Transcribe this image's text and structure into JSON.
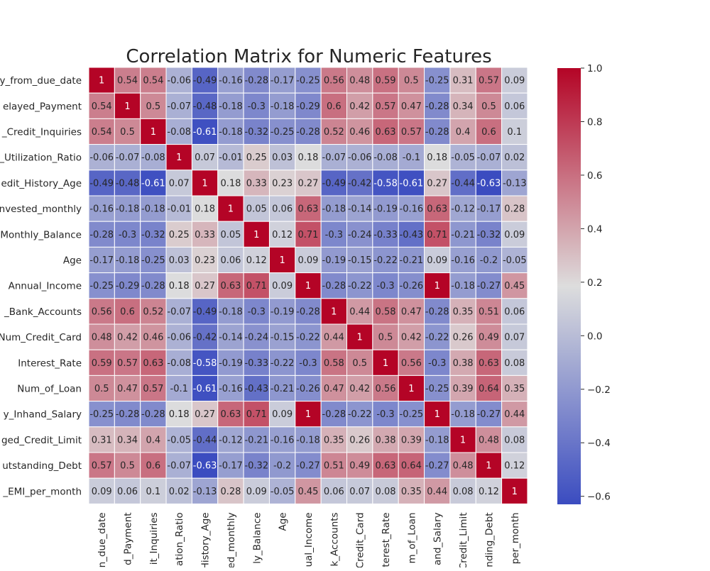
{
  "chart_data": {
    "type": "heatmap",
    "title": "Correlation Matrix for Numeric Features",
    "row_labels": [
      "y_from_due_date",
      "elayed_Payment",
      "_Credit_Inquiries",
      "_Utilization_Ratio",
      "edit_History_Age",
      "nvested_monthly",
      "Monthly_Balance",
      "Age",
      "Annual_Income",
      "_Bank_Accounts",
      "Num_Credit_Card",
      "Interest_Rate",
      "Num_of_Loan",
      "y_Inhand_Salary",
      "ged_Credit_Limit",
      "utstanding_Debt",
      "_EMI_per_month"
    ],
    "column_labels": [
      "n_due_date",
      "d_Payment",
      "it_Inquiries",
      "ation_Ratio",
      "History_Age",
      "ed_monthly",
      "ly_Balance",
      "Age",
      "ual_Income",
      "k_Accounts",
      "Credit_Card",
      "terest_Rate",
      "m_of_Loan",
      "and_Salary",
      "Credit_Limit",
      "nding_Debt",
      "per_month"
    ],
    "values": [
      [
        1,
        0.54,
        0.54,
        -0.06,
        -0.49,
        -0.16,
        -0.28,
        -0.17,
        -0.25,
        0.56,
        0.48,
        0.59,
        0.5,
        -0.25,
        0.31,
        0.57,
        0.09
      ],
      [
        0.54,
        1,
        0.5,
        -0.07,
        -0.48,
        -0.18,
        -0.3,
        -0.18,
        -0.29,
        0.6,
        0.42,
        0.57,
        0.47,
        -0.28,
        0.34,
        0.5,
        0.06
      ],
      [
        0.54,
        0.5,
        1,
        -0.08,
        -0.61,
        -0.18,
        -0.32,
        -0.25,
        -0.28,
        0.52,
        0.46,
        0.63,
        0.57,
        -0.28,
        0.4,
        0.6,
        0.1
      ],
      [
        -0.06,
        -0.07,
        -0.08,
        1,
        0.07,
        -0.01,
        0.25,
        0.03,
        0.18,
        -0.07,
        -0.06,
        -0.08,
        -0.1,
        0.18,
        -0.05,
        -0.07,
        0.02
      ],
      [
        -0.49,
        -0.48,
        -0.61,
        0.07,
        1,
        0.18,
        0.33,
        0.23,
        0.27,
        -0.49,
        -0.42,
        -0.58,
        -0.61,
        0.27,
        -0.44,
        -0.63,
        -0.13
      ],
      [
        -0.16,
        -0.18,
        -0.18,
        -0.01,
        0.18,
        1,
        0.05,
        0.06,
        0.63,
        -0.18,
        -0.14,
        -0.19,
        -0.16,
        0.63,
        -0.12,
        -0.17,
        0.28
      ],
      [
        -0.28,
        -0.3,
        -0.32,
        0.25,
        0.33,
        0.05,
        1,
        0.12,
        0.71,
        -0.3,
        -0.24,
        -0.33,
        -0.43,
        0.71,
        -0.21,
        -0.32,
        0.09
      ],
      [
        -0.17,
        -0.18,
        -0.25,
        0.03,
        0.23,
        0.06,
        0.12,
        1,
        0.09,
        -0.19,
        -0.15,
        -0.22,
        -0.21,
        0.09,
        -0.16,
        -0.2,
        -0.05
      ],
      [
        -0.25,
        -0.29,
        -0.28,
        0.18,
        0.27,
        0.63,
        0.71,
        0.09,
        1,
        -0.28,
        -0.22,
        -0.3,
        -0.26,
        1,
        -0.18,
        -0.27,
        0.45
      ],
      [
        0.56,
        0.6,
        0.52,
        -0.07,
        -0.49,
        -0.18,
        -0.3,
        -0.19,
        -0.28,
        1,
        0.44,
        0.58,
        0.47,
        -0.28,
        0.35,
        0.51,
        0.06
      ],
      [
        0.48,
        0.42,
        0.46,
        -0.06,
        -0.42,
        -0.14,
        -0.24,
        -0.15,
        -0.22,
        0.44,
        1,
        0.5,
        0.42,
        -0.22,
        0.26,
        0.49,
        0.07
      ],
      [
        0.59,
        0.57,
        0.63,
        -0.08,
        -0.58,
        -0.19,
        -0.33,
        -0.22,
        -0.3,
        0.58,
        0.5,
        1,
        0.56,
        -0.3,
        0.38,
        0.63,
        0.08
      ],
      [
        0.5,
        0.47,
        0.57,
        -0.1,
        -0.61,
        -0.16,
        -0.43,
        -0.21,
        -0.26,
        0.47,
        0.42,
        0.56,
        1,
        -0.25,
        0.39,
        0.64,
        0.35
      ],
      [
        -0.25,
        -0.28,
        -0.28,
        0.18,
        0.27,
        0.63,
        0.71,
        0.09,
        1,
        -0.28,
        -0.22,
        -0.3,
        -0.25,
        1,
        -0.18,
        -0.27,
        0.44
      ],
      [
        0.31,
        0.34,
        0.4,
        -0.05,
        -0.44,
        -0.12,
        -0.21,
        -0.16,
        -0.18,
        0.35,
        0.26,
        0.38,
        0.39,
        -0.18,
        1,
        0.48,
        0.08
      ],
      [
        0.57,
        0.5,
        0.6,
        -0.07,
        -0.63,
        -0.17,
        -0.32,
        -0.2,
        -0.27,
        0.51,
        0.49,
        0.63,
        0.64,
        -0.27,
        0.48,
        1,
        0.12
      ],
      [
        0.09,
        0.06,
        0.1,
        0.02,
        -0.13,
        0.28,
        0.09,
        -0.05,
        0.45,
        0.06,
        0.07,
        0.08,
        0.35,
        0.44,
        0.08,
        0.12,
        1
      ]
    ],
    "color_scale": {
      "name": "coolwarm",
      "vmin": -0.63,
      "vmax": 1,
      "low_color": "#3b4cc0",
      "mid_color": "#dddddd",
      "high_color": "#b40426"
    },
    "colorbar": {
      "ticks": [
        -0.6,
        -0.4,
        -0.2,
        0.0,
        0.2,
        0.4,
        0.6,
        0.8,
        1.0
      ],
      "tick_labels": [
        "−0.6",
        "−0.4",
        "−0.2",
        "0.0",
        "0.2",
        "0.4",
        "0.6",
        "0.8",
        "1.0"
      ],
      "placement": "right"
    },
    "annotations": true,
    "grid": false
  }
}
